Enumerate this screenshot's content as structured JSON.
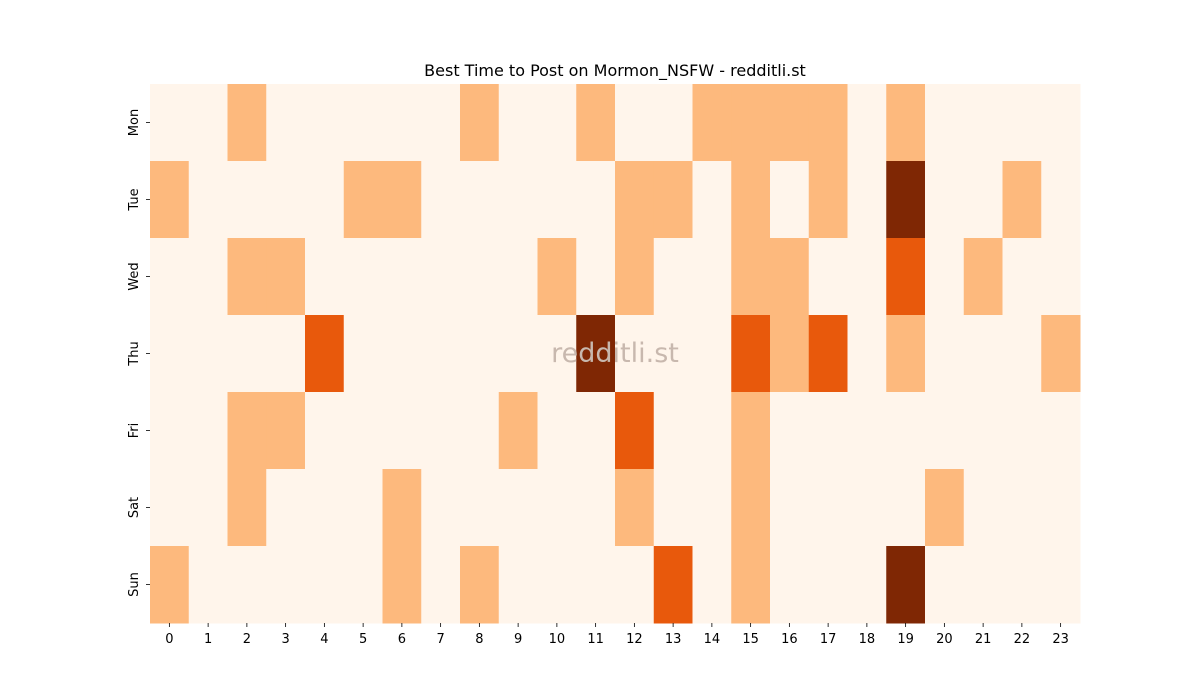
{
  "chart_data": {
    "type": "heatmap",
    "title": "Best Time to Post on Mormon_NSFW - redditli.st",
    "watermark": "redditli.st",
    "xlabel": "",
    "ylabel": "",
    "x_categories": [
      "0",
      "1",
      "2",
      "3",
      "4",
      "5",
      "6",
      "7",
      "8",
      "9",
      "10",
      "11",
      "12",
      "13",
      "14",
      "15",
      "16",
      "17",
      "18",
      "19",
      "20",
      "21",
      "22",
      "23"
    ],
    "y_categories": [
      "Mon",
      "Tue",
      "Wed",
      "Thu",
      "Fri",
      "Sat",
      "Sun"
    ],
    "levels": 4,
    "colors": [
      "#fff5eb",
      "#fdb97d",
      "#e8590c",
      "#7f2704"
    ],
    "values": [
      [
        0,
        0,
        1,
        0,
        0,
        0,
        0,
        0,
        1,
        0,
        0,
        1,
        0,
        0,
        1,
        1,
        1,
        1,
        0,
        1,
        0,
        0,
        0,
        0
      ],
      [
        1,
        0,
        0,
        0,
        0,
        1,
        1,
        0,
        0,
        0,
        0,
        0,
        1,
        1,
        0,
        1,
        0,
        1,
        0,
        3,
        0,
        0,
        1,
        0
      ],
      [
        0,
        0,
        1,
        1,
        0,
        0,
        0,
        0,
        0,
        0,
        1,
        0,
        1,
        0,
        0,
        1,
        1,
        0,
        0,
        2,
        0,
        1,
        0,
        0
      ],
      [
        0,
        0,
        0,
        0,
        2,
        0,
        0,
        0,
        0,
        0,
        0,
        3,
        0,
        0,
        0,
        2,
        1,
        2,
        0,
        1,
        0,
        0,
        0,
        1
      ],
      [
        0,
        0,
        1,
        1,
        0,
        0,
        0,
        0,
        0,
        1,
        0,
        0,
        2,
        0,
        0,
        1,
        0,
        0,
        0,
        0,
        0,
        0,
        0,
        0
      ],
      [
        0,
        0,
        1,
        0,
        0,
        0,
        1,
        0,
        0,
        0,
        0,
        0,
        1,
        0,
        0,
        1,
        0,
        0,
        0,
        0,
        1,
        0,
        0,
        0
      ],
      [
        1,
        0,
        0,
        0,
        0,
        0,
        1,
        0,
        1,
        0,
        0,
        0,
        0,
        2,
        0,
        1,
        0,
        0,
        0,
        3,
        0,
        0,
        0,
        0
      ]
    ]
  }
}
